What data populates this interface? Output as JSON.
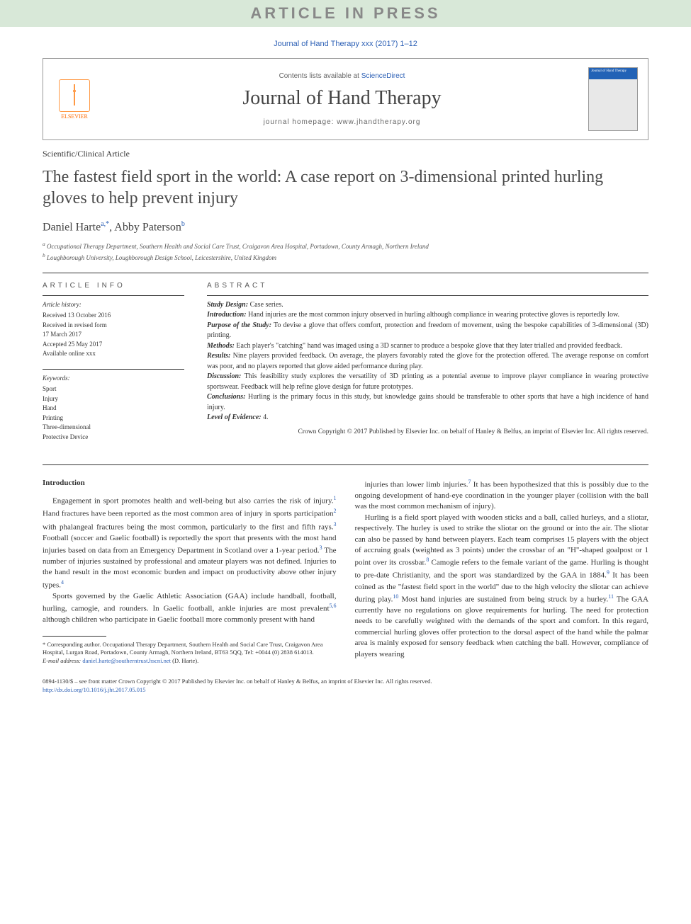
{
  "banner": "ARTICLE IN PRESS",
  "journalRef": {
    "text": "Journal of Hand Therapy xxx (2017) 1–12",
    "link": "Journal of Hand Therapy xxx (2017) 1–12"
  },
  "header": {
    "contentsPrefix": "Contents lists available at ",
    "contentsLink": "ScienceDirect",
    "journalTitle": "Journal of Hand Therapy",
    "homepagePrefix": "journal homepage: ",
    "homepage": "www.jhandtherapy.org",
    "elsevierLabel": "ELSEVIER",
    "coverTitle": "Journal of\nHand Therapy"
  },
  "articleType": "Scientific/Clinical Article",
  "title": "The fastest field sport in the world: A case report on 3-dimensional printed hurling gloves to help prevent injury",
  "authors": [
    {
      "name": "Daniel Harte",
      "sup": "a,",
      "star": "*"
    },
    {
      "name": "Abby Paterson",
      "sup": "b",
      "star": ""
    }
  ],
  "affiliations": [
    {
      "sup": "a",
      "text": "Occupational Therapy Department, Southern Health and Social Care Trust, Craigavon Area Hospital, Portadown, County Armagh, Northern Ireland"
    },
    {
      "sup": "b",
      "text": "Loughborough University, Loughborough Design School, Leicestershire, United Kingdom"
    }
  ],
  "info": {
    "heading": "ARTICLE INFO",
    "history": {
      "label": "Article history:",
      "lines": [
        "Received 13 October 2016",
        "Received in revised form",
        "17 March 2017",
        "Accepted 25 May 2017",
        "Available online xxx"
      ]
    },
    "keywords": {
      "label": "Keywords:",
      "items": [
        "Sport",
        "Injury",
        "Hand",
        "Printing",
        "Three-dimensional",
        "Protective Device"
      ]
    }
  },
  "abstract": {
    "heading": "ABSTRACT",
    "sections": [
      {
        "label": "Study Design:",
        "text": " Case series."
      },
      {
        "label": "Introduction:",
        "text": " Hand injuries are the most common injury observed in hurling although compliance in wearing protective gloves is reportedly low."
      },
      {
        "label": "Purpose of the Study:",
        "text": " To devise a glove that offers comfort, protection and freedom of movement, using the bespoke capabilities of 3-dimensional (3D) printing."
      },
      {
        "label": "Methods:",
        "text": " Each player's \"catching\" hand was imaged using a 3D scanner to produce a bespoke glove that they later trialled and provided feedback."
      },
      {
        "label": "Results:",
        "text": " Nine players provided feedback. On average, the players favorably rated the glove for the protection offered. The average response on comfort was poor, and no players reported that glove aided performance during play."
      },
      {
        "label": "Discussion:",
        "text": " This feasibility study explores the versatility of 3D printing as a potential avenue to improve player compliance in wearing protective sportswear. Feedback will help refine glove design for future prototypes."
      },
      {
        "label": "Conclusions:",
        "text": " Hurling is the primary focus in this study, but knowledge gains should be transferable to other sports that have a high incidence of hand injury."
      },
      {
        "label": "Level of Evidence:",
        "text": " 4."
      }
    ],
    "copyright": "Crown Copyright © 2017 Published by Elsevier Inc. on behalf of Hanley & Belfus, an imprint of Elsevier Inc. All rights reserved."
  },
  "body": {
    "sectionHead": "Introduction",
    "col1": [
      "Engagement in sport promotes health and well-being but also carries the risk of injury.|1| Hand fractures have been reported as the most common area of injury in sports participation|2| with phalangeal fractures being the most common, particularly to the first and fifth rays.|3| Football (soccer and Gaelic football) is reportedly the sport that presents with the most hand injuries based on data from an Emergency Department in Scotland over a 1-year period.|3| The number of injuries sustained by professional and amateur players was not defined. Injuries to the hand result in the most economic burden and impact on productivity above other injury types.|4|",
      "Sports governed by the Gaelic Athletic Association (GAA) include handball, football, hurling, camogie, and rounders. In Gaelic football, ankle injuries are most prevalent|5,6| although children who participate in Gaelic football more commonly present with hand"
    ],
    "col2": [
      "injuries than lower limb injuries.|7| It has been hypothesized that this is possibly due to the ongoing development of hand-eye coordination in the younger player (collision with the ball was the most common mechanism of injury).",
      "Hurling is a field sport played with wooden sticks and a ball, called hurleys, and a sliotar, respectively. The hurley is used to strike the sliotar on the ground or into the air. The sliotar can also be passed by hand between players. Each team comprises 15 players with the object of accruing goals (weighted as 3 points) under the crossbar of an \"H\"-shaped goalpost or 1 point over its crossbar.|8| Camogie refers to the female variant of the game. Hurling is thought to pre-date Christianity, and the sport was standardized by the GAA in 1884.|9| It has been coined as the \"fastest field sport in the world\" due to the high velocity the sliotar can achieve during play.|10| Most hand injuries are sustained from being struck by a hurley.|11| The GAA currently have no regulations on glove requirements for hurling. The need for protection needs to be carefully weighted with the demands of the sport and comfort. In this regard, commercial hurling gloves offer protection to the dorsal aspect of the hand while the palmar area is mainly exposed for sensory feedback when catching the ball. However, compliance of players wearing"
    ]
  },
  "footnotes": {
    "corresponding": "* Corresponding author. Occupational Therapy Department, Southern Health and Social Care Trust, Craigavon Area Hospital, Lurgan Road, Portadown, County Armagh, Northern Ireland, BT63 5QQ, Tel: +0044 (0) 2838 614013.",
    "emailLabel": "E-mail address:",
    "email": "daniel.harte@southerntrust.hscni.net",
    "emailSuffix": " (D. Harte)."
  },
  "footer": {
    "line1": "0894-1130/$ – see front matter Crown Copyright © 2017 Published by Elsevier Inc. on behalf of Hanley & Belfus, an imprint of Elsevier Inc. All rights reserved.",
    "doi": "http://dx.doi.org/10.1016/j.jht.2017.05.015"
  },
  "colors": {
    "linkBlue": "#2b5fb5",
    "elsevierOrange": "#ff6a00",
    "bannerBg": "#d8e8d8",
    "coverBlue": "#2262b6"
  }
}
